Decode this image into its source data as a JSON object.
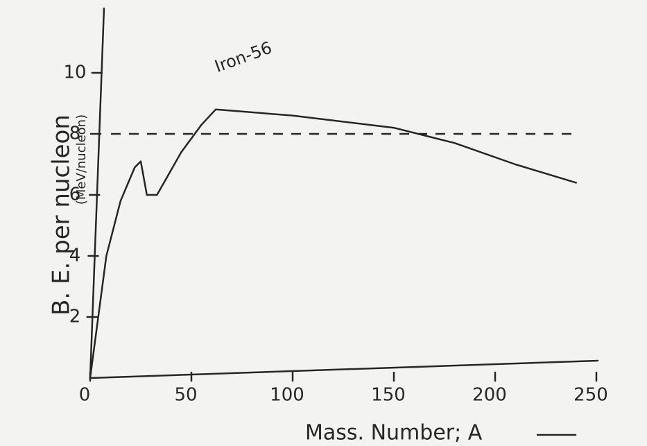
{
  "chart_data": {
    "type": "line",
    "x_label": "Mass. Number; A",
    "y_label": "B. E. per nucleon",
    "y_unit": "(MeV/nucleon)",
    "annotation": "Iron-56",
    "x": [
      0,
      8,
      15,
      22,
      25,
      28,
      33,
      45,
      55,
      62,
      100,
      150,
      180,
      210,
      240
    ],
    "series": [
      {
        "color": "#262626",
        "values": [
          0,
          4,
          5.8,
          6.9,
          7.1,
          6.0,
          6.0,
          7.4,
          8.3,
          8.8,
          8.6,
          8.2,
          7.7,
          7.0,
          6.4
        ]
      }
    ],
    "reference_line": 8,
    "xlim": [
      0,
      250
    ],
    "ylim": [
      0,
      12
    ],
    "xticks": [
      0,
      50,
      100,
      150,
      200,
      250
    ],
    "yticks": [
      2,
      4,
      6,
      8,
      10
    ]
  }
}
